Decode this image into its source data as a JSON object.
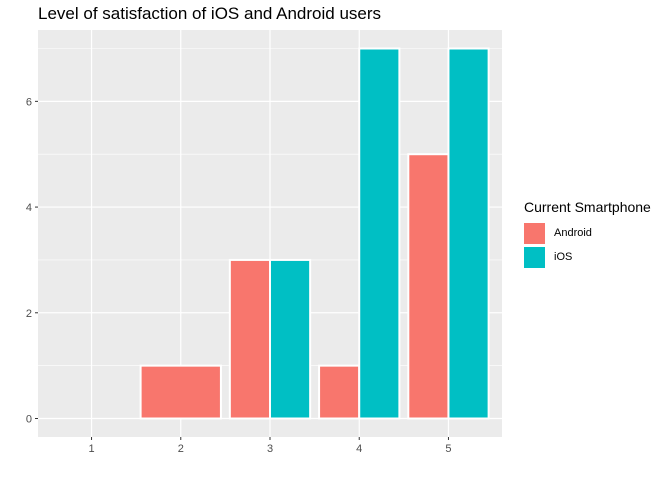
{
  "chart_data": {
    "type": "bar",
    "title": "Level of satisfaction of iOS and Android users",
    "xlabel": "",
    "ylabel": "",
    "categories": [
      "1",
      "2",
      "3",
      "4",
      "5"
    ],
    "series": [
      {
        "name": "Android",
        "values": [
          null,
          1,
          3,
          1,
          5
        ],
        "color": "#F8766D"
      },
      {
        "name": "iOS",
        "values": [
          null,
          null,
          3,
          7,
          7
        ],
        "color": "#00BFC4"
      }
    ],
    "ylim": [
      -0.35,
      7.35
    ],
    "yticks": [
      0,
      2,
      4,
      6
    ],
    "grid": true,
    "legend": {
      "title": "Current Smartphone",
      "position": "right"
    }
  }
}
